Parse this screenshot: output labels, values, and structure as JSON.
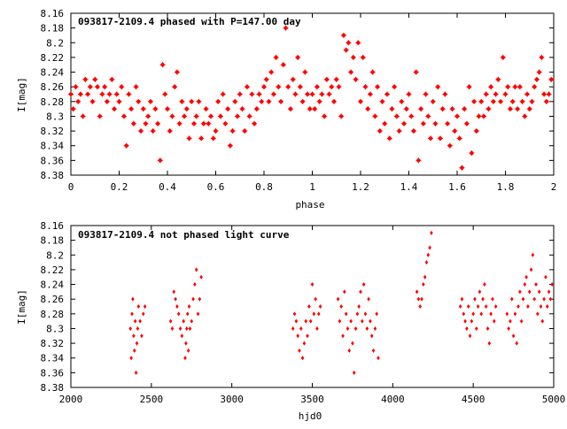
{
  "chart_data": [
    {
      "type": "scatter",
      "title": "093817-2109.4 phased with P=147.00 day",
      "xlabel": "phase",
      "ylabel": "I[mag]",
      "xlim": [
        0,
        2
      ],
      "ylim": [
        8.38,
        8.16
      ],
      "y_inverted": true,
      "xticks": [
        "0",
        "0.2",
        "0.4",
        "0.6",
        "0.8",
        "1",
        "1.2",
        "1.4",
        "1.6",
        "1.8",
        "2"
      ],
      "yticks": [
        "8.16",
        "8.18",
        "8.2",
        "8.22",
        "8.24",
        "8.26",
        "8.28",
        "8.3",
        "8.32",
        "8.34",
        "8.36",
        "8.38"
      ],
      "marker_color": "#ff0000",
      "marker": "star",
      "points": [
        [
          0.0,
          8.27
        ],
        [
          0.01,
          8.29
        ],
        [
          0.02,
          8.26
        ],
        [
          0.03,
          8.28
        ],
        [
          0.04,
          8.27
        ],
        [
          0.05,
          8.3
        ],
        [
          0.06,
          8.25
        ],
        [
          0.07,
          8.27
        ],
        [
          0.08,
          8.26
        ],
        [
          0.09,
          8.28
        ],
        [
          0.1,
          8.25
        ],
        [
          0.11,
          8.26
        ],
        [
          0.12,
          8.3
        ],
        [
          0.13,
          8.27
        ],
        [
          0.14,
          8.26
        ],
        [
          0.15,
          8.28
        ],
        [
          0.16,
          8.27
        ],
        [
          0.17,
          8.25
        ],
        [
          0.18,
          8.29
        ],
        [
          0.19,
          8.27
        ],
        [
          0.2,
          8.28
        ],
        [
          0.21,
          8.26
        ],
        [
          0.22,
          8.3
        ],
        [
          0.23,
          8.34
        ],
        [
          0.24,
          8.27
        ],
        [
          0.25,
          8.29
        ],
        [
          0.26,
          8.31
        ],
        [
          0.27,
          8.26
        ],
        [
          0.28,
          8.28
        ],
        [
          0.29,
          8.32
        ],
        [
          0.3,
          8.29
        ],
        [
          0.31,
          8.31
        ],
        [
          0.32,
          8.3
        ],
        [
          0.33,
          8.28
        ],
        [
          0.34,
          8.32
        ],
        [
          0.35,
          8.29
        ],
        [
          0.36,
          8.31
        ],
        [
          0.37,
          8.36
        ],
        [
          0.38,
          8.23
        ],
        [
          0.39,
          8.27
        ],
        [
          0.4,
          8.29
        ],
        [
          0.41,
          8.32
        ],
        [
          0.42,
          8.3
        ],
        [
          0.43,
          8.26
        ],
        [
          0.44,
          8.24
        ],
        [
          0.45,
          8.31
        ],
        [
          0.46,
          8.28
        ],
        [
          0.47,
          8.3
        ],
        [
          0.48,
          8.29
        ],
        [
          0.49,
          8.33
        ],
        [
          0.5,
          8.28
        ],
        [
          0.51,
          8.31
        ],
        [
          0.52,
          8.3
        ],
        [
          0.53,
          8.28
        ],
        [
          0.54,
          8.33
        ],
        [
          0.55,
          8.31
        ],
        [
          0.56,
          8.29
        ],
        [
          0.57,
          8.31
        ],
        [
          0.58,
          8.3
        ],
        [
          0.59,
          8.33
        ],
        [
          0.6,
          8.32
        ],
        [
          0.61,
          8.28
        ],
        [
          0.62,
          8.3
        ],
        [
          0.63,
          8.27
        ],
        [
          0.64,
          8.31
        ],
        [
          0.65,
          8.29
        ],
        [
          0.66,
          8.34
        ],
        [
          0.67,
          8.32
        ],
        [
          0.68,
          8.28
        ],
        [
          0.69,
          8.3
        ],
        [
          0.7,
          8.27
        ],
        [
          0.71,
          8.29
        ],
        [
          0.72,
          8.32
        ],
        [
          0.73,
          8.26
        ],
        [
          0.74,
          8.3
        ],
        [
          0.75,
          8.27
        ],
        [
          0.76,
          8.31
        ],
        [
          0.77,
          8.29
        ],
        [
          0.78,
          8.27
        ],
        [
          0.79,
          8.28
        ],
        [
          0.8,
          8.26
        ],
        [
          0.81,
          8.25
        ],
        [
          0.82,
          8.28
        ],
        [
          0.83,
          8.24
        ],
        [
          0.84,
          8.27
        ],
        [
          0.85,
          8.22
        ],
        [
          0.86,
          8.26
        ],
        [
          0.87,
          8.28
        ],
        [
          0.88,
          8.23
        ],
        [
          0.89,
          8.18
        ],
        [
          0.9,
          8.26
        ],
        [
          0.91,
          8.29
        ],
        [
          0.92,
          8.25
        ],
        [
          0.93,
          8.27
        ],
        [
          0.94,
          8.22
        ],
        [
          0.95,
          8.26
        ],
        [
          0.96,
          8.28
        ],
        [
          0.97,
          8.24
        ],
        [
          0.98,
          8.27
        ],
        [
          0.99,
          8.29
        ],
        [
          1.0,
          8.27
        ],
        [
          1.01,
          8.29
        ],
        [
          1.02,
          8.26
        ],
        [
          1.03,
          8.28
        ],
        [
          1.04,
          8.27
        ],
        [
          1.05,
          8.3
        ],
        [
          1.06,
          8.25
        ],
        [
          1.07,
          8.27
        ],
        [
          1.08,
          8.26
        ],
        [
          1.09,
          8.28
        ],
        [
          1.1,
          8.25
        ],
        [
          1.11,
          8.26
        ],
        [
          1.12,
          8.3
        ],
        [
          1.13,
          8.19
        ],
        [
          1.14,
          8.21
        ],
        [
          1.15,
          8.2
        ],
        [
          1.16,
          8.24
        ],
        [
          1.17,
          8.22
        ],
        [
          1.18,
          8.25
        ],
        [
          1.19,
          8.2
        ],
        [
          1.2,
          8.28
        ],
        [
          1.21,
          8.22
        ],
        [
          1.22,
          8.26
        ],
        [
          1.23,
          8.29
        ],
        [
          1.24,
          8.27
        ],
        [
          1.25,
          8.24
        ],
        [
          1.26,
          8.3
        ],
        [
          1.27,
          8.26
        ],
        [
          1.28,
          8.32
        ],
        [
          1.29,
          8.28
        ],
        [
          1.3,
          8.31
        ],
        [
          1.31,
          8.27
        ],
        [
          1.32,
          8.33
        ],
        [
          1.33,
          8.29
        ],
        [
          1.34,
          8.26
        ],
        [
          1.35,
          8.3
        ],
        [
          1.36,
          8.32
        ],
        [
          1.37,
          8.28
        ],
        [
          1.38,
          8.31
        ],
        [
          1.39,
          8.29
        ],
        [
          1.4,
          8.27
        ],
        [
          1.41,
          8.3
        ],
        [
          1.42,
          8.32
        ],
        [
          1.43,
          8.24
        ],
        [
          1.44,
          8.36
        ],
        [
          1.45,
          8.29
        ],
        [
          1.46,
          8.31
        ],
        [
          1.47,
          8.27
        ],
        [
          1.48,
          8.3
        ],
        [
          1.49,
          8.33
        ],
        [
          1.5,
          8.28
        ],
        [
          1.51,
          8.31
        ],
        [
          1.52,
          8.26
        ],
        [
          1.53,
          8.33
        ],
        [
          1.54,
          8.29
        ],
        [
          1.55,
          8.27
        ],
        [
          1.56,
          8.31
        ],
        [
          1.57,
          8.34
        ],
        [
          1.58,
          8.29
        ],
        [
          1.59,
          8.32
        ],
        [
          1.6,
          8.3
        ],
        [
          1.61,
          8.33
        ],
        [
          1.62,
          8.37
        ],
        [
          1.63,
          8.29
        ],
        [
          1.64,
          8.31
        ],
        [
          1.65,
          8.26
        ],
        [
          1.66,
          8.35
        ],
        [
          1.67,
          8.28
        ],
        [
          1.68,
          8.32
        ],
        [
          1.69,
          8.3
        ],
        [
          1.7,
          8.28
        ],
        [
          1.71,
          8.3
        ],
        [
          1.72,
          8.27
        ],
        [
          1.73,
          8.29
        ],
        [
          1.74,
          8.26
        ],
        [
          1.75,
          8.28
        ],
        [
          1.76,
          8.27
        ],
        [
          1.77,
          8.25
        ],
        [
          1.78,
          8.28
        ],
        [
          1.79,
          8.22
        ],
        [
          1.8,
          8.27
        ],
        [
          1.81,
          8.26
        ],
        [
          1.82,
          8.29
        ],
        [
          1.83,
          8.28
        ],
        [
          1.84,
          8.26
        ],
        [
          1.85,
          8.29
        ],
        [
          1.86,
          8.26
        ],
        [
          1.87,
          8.28
        ],
        [
          1.88,
          8.3
        ],
        [
          1.89,
          8.27
        ],
        [
          1.9,
          8.29
        ],
        [
          1.91,
          8.28
        ],
        [
          1.92,
          8.26
        ],
        [
          1.93,
          8.25
        ],
        [
          1.94,
          8.24
        ],
        [
          1.95,
          8.22
        ],
        [
          1.96,
          8.27
        ],
        [
          1.97,
          8.28
        ],
        [
          1.98,
          8.27
        ],
        [
          1.99,
          8.25
        ]
      ]
    },
    {
      "type": "scatter",
      "title": "093817-2109.4 not phased light curve",
      "xlabel": "hjd0",
      "ylabel": "I[mag]",
      "xlim": [
        2000,
        5000
      ],
      "ylim": [
        8.38,
        8.16
      ],
      "y_inverted": true,
      "xticks": [
        "2000",
        "2500",
        "3000",
        "3500",
        "4000",
        "4500",
        "5000"
      ],
      "yticks": [
        "8.16",
        "8.18",
        "8.2",
        "8.22",
        "8.24",
        "8.26",
        "8.28",
        "8.3",
        "8.32",
        "8.34",
        "8.36",
        "8.38"
      ],
      "marker_color": "#ff0000",
      "marker": "diamond",
      "points": [
        [
          2370,
          8.3
        ],
        [
          2375,
          8.34
        ],
        [
          2380,
          8.28
        ],
        [
          2385,
          8.26
        ],
        [
          2390,
          8.31
        ],
        [
          2395,
          8.33
        ],
        [
          2400,
          8.29
        ],
        [
          2405,
          8.36
        ],
        [
          2410,
          8.32
        ],
        [
          2415,
          8.3
        ],
        [
          2420,
          8.27
        ],
        [
          2430,
          8.29
        ],
        [
          2440,
          8.31
        ],
        [
          2450,
          8.28
        ],
        [
          2460,
          8.27
        ],
        [
          2620,
          8.29
        ],
        [
          2630,
          8.3
        ],
        [
          2640,
          8.25
        ],
        [
          2650,
          8.26
        ],
        [
          2660,
          8.27
        ],
        [
          2670,
          8.28
        ],
        [
          2680,
          8.3
        ],
        [
          2690,
          8.31
        ],
        [
          2700,
          8.29
        ],
        [
          2710,
          8.34
        ],
        [
          2715,
          8.32
        ],
        [
          2720,
          8.3
        ],
        [
          2725,
          8.28
        ],
        [
          2730,
          8.33
        ],
        [
          2735,
          8.27
        ],
        [
          2740,
          8.3
        ],
        [
          2750,
          8.29
        ],
        [
          2760,
          8.26
        ],
        [
          2770,
          8.24
        ],
        [
          2780,
          8.22
        ],
        [
          2790,
          8.28
        ],
        [
          2800,
          8.26
        ],
        [
          2810,
          8.23
        ],
        [
          3380,
          8.3
        ],
        [
          3390,
          8.28
        ],
        [
          3400,
          8.29
        ],
        [
          3410,
          8.31
        ],
        [
          3420,
          8.33
        ],
        [
          3430,
          8.3
        ],
        [
          3440,
          8.34
        ],
        [
          3450,
          8.32
        ],
        [
          3460,
          8.29
        ],
        [
          3470,
          8.31
        ],
        [
          3480,
          8.27
        ],
        [
          3490,
          8.29
        ],
        [
          3500,
          8.24
        ],
        [
          3510,
          8.28
        ],
        [
          3520,
          8.26
        ],
        [
          3530,
          8.3
        ],
        [
          3540,
          8.28
        ],
        [
          3550,
          8.27
        ],
        [
          3660,
          8.26
        ],
        [
          3670,
          8.29
        ],
        [
          3680,
          8.27
        ],
        [
          3690,
          8.31
        ],
        [
          3700,
          8.25
        ],
        [
          3710,
          8.28
        ],
        [
          3720,
          8.3
        ],
        [
          3730,
          8.33
        ],
        [
          3740,
          8.29
        ],
        [
          3750,
          8.32
        ],
        [
          3760,
          8.36
        ],
        [
          3770,
          8.3
        ],
        [
          3780,
          8.28
        ],
        [
          3790,
          8.27
        ],
        [
          3800,
          8.25
        ],
        [
          3810,
          8.29
        ],
        [
          3820,
          8.24
        ],
        [
          3830,
          8.28
        ],
        [
          3840,
          8.3
        ],
        [
          3850,
          8.26
        ],
        [
          3860,
          8.29
        ],
        [
          3870,
          8.31
        ],
        [
          3880,
          8.33
        ],
        [
          3890,
          8.3
        ],
        [
          3900,
          8.28
        ],
        [
          3910,
          8.34
        ],
        [
          4150,
          8.25
        ],
        [
          4160,
          8.26
        ],
        [
          4170,
          8.27
        ],
        [
          4180,
          8.26
        ],
        [
          4190,
          8.24
        ],
        [
          4200,
          8.23
        ],
        [
          4210,
          8.21
        ],
        [
          4220,
          8.2
        ],
        [
          4230,
          8.19
        ],
        [
          4240,
          8.17
        ],
        [
          4420,
          8.27
        ],
        [
          4430,
          8.26
        ],
        [
          4440,
          8.28
        ],
        [
          4450,
          8.29
        ],
        [
          4460,
          8.3
        ],
        [
          4470,
          8.27
        ],
        [
          4480,
          8.31
        ],
        [
          4490,
          8.29
        ],
        [
          4500,
          8.28
        ],
        [
          4510,
          8.26
        ],
        [
          4520,
          8.3
        ],
        [
          4530,
          8.27
        ],
        [
          4540,
          8.25
        ],
        [
          4550,
          8.28
        ],
        [
          4560,
          8.26
        ],
        [
          4570,
          8.24
        ],
        [
          4580,
          8.27
        ],
        [
          4590,
          8.3
        ],
        [
          4600,
          8.32
        ],
        [
          4610,
          8.28
        ],
        [
          4620,
          8.26
        ],
        [
          4630,
          8.29
        ],
        [
          4640,
          8.27
        ],
        [
          4710,
          8.28
        ],
        [
          4720,
          8.3
        ],
        [
          4730,
          8.29
        ],
        [
          4740,
          8.26
        ],
        [
          4750,
          8.31
        ],
        [
          4760,
          8.28
        ],
        [
          4770,
          8.32
        ],
        [
          4780,
          8.27
        ],
        [
          4790,
          8.25
        ],
        [
          4800,
          8.29
        ],
        [
          4810,
          8.26
        ],
        [
          4820,
          8.24
        ],
        [
          4830,
          8.23
        ],
        [
          4840,
          8.27
        ],
        [
          4850,
          8.25
        ],
        [
          4860,
          8.22
        ],
        [
          4870,
          8.2
        ],
        [
          4880,
          8.26
        ],
        [
          4890,
          8.24
        ],
        [
          4900,
          8.28
        ],
        [
          4910,
          8.25
        ],
        [
          4920,
          8.27
        ],
        [
          4930,
          8.29
        ],
        [
          4940,
          8.26
        ],
        [
          4950,
          8.23
        ],
        [
          4960,
          8.27
        ],
        [
          4970,
          8.25
        ],
        [
          4980,
          8.26
        ],
        [
          4990,
          8.24
        ]
      ]
    }
  ]
}
